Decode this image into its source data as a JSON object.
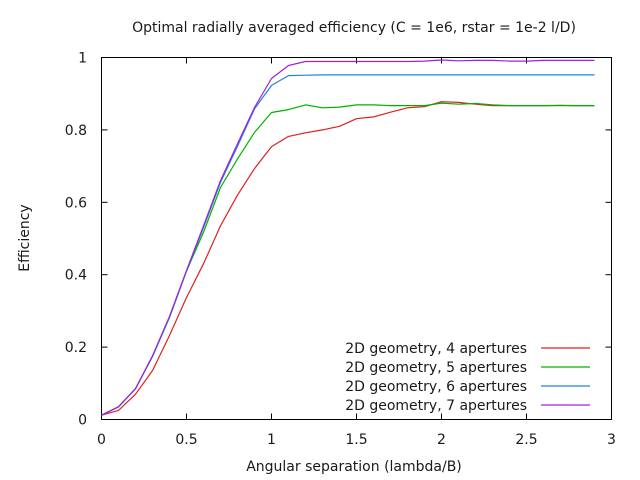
{
  "chart_data": {
    "type": "line",
    "title": "Optimal radially averaged efficiency (C = 1e6, rstar = 1e-2 l/D)",
    "xlabel": "Angular separation (lambda/B)",
    "ylabel": "Efficiency",
    "xlim": [
      0,
      3
    ],
    "ylim": [
      0,
      1
    ],
    "xticks": [
      0,
      0.5,
      1,
      1.5,
      2,
      2.5,
      3
    ],
    "xtick_labels": [
      "0",
      "0.5",
      "1",
      "1.5",
      "2",
      "2.5",
      "3"
    ],
    "yticks": [
      0,
      0.2,
      0.4,
      0.6,
      0.8,
      1
    ],
    "ytick_labels": [
      "0",
      "0.2",
      "0.4",
      "0.6",
      "0.8",
      "1"
    ],
    "grid": false,
    "legend_position": "bottom-right",
    "x": [
      0,
      0.1,
      0.2,
      0.3,
      0.4,
      0.5,
      0.6,
      0.7,
      0.8,
      0.9,
      1.0,
      1.1,
      1.2,
      1.3,
      1.4,
      1.5,
      1.6,
      1.7,
      1.8,
      1.9,
      2.0,
      2.1,
      2.2,
      2.3,
      2.4,
      2.5,
      2.6,
      2.7,
      2.8,
      2.9
    ],
    "series": [
      {
        "name": "2D geometry, 4 apertures",
        "color": "#e02020",
        "values": [
          0.012,
          0.025,
          0.07,
          0.135,
          0.232,
          0.337,
          0.43,
          0.535,
          0.62,
          0.693,
          0.754,
          0.782,
          0.792,
          0.8,
          0.81,
          0.831,
          0.836,
          0.849,
          0.861,
          0.864,
          0.878,
          0.876,
          0.871,
          0.867,
          0.867,
          0.867,
          0.867,
          0.868,
          0.867,
          0.867
        ]
      },
      {
        "name": "2D geometry, 5 apertures",
        "color": "#00b000",
        "values": [
          0.012,
          0.035,
          0.085,
          0.174,
          0.282,
          0.41,
          0.517,
          0.641,
          0.72,
          0.793,
          0.848,
          0.856,
          0.869,
          0.861,
          0.863,
          0.869,
          0.869,
          0.867,
          0.867,
          0.867,
          0.874,
          0.871,
          0.873,
          0.869,
          0.867,
          0.867,
          0.867,
          0.867,
          0.867,
          0.867
        ]
      },
      {
        "name": "2D geometry, 6 apertures",
        "color": "#2080e0",
        "values": [
          0.012,
          0.035,
          0.085,
          0.174,
          0.282,
          0.41,
          0.53,
          0.655,
          0.755,
          0.858,
          0.923,
          0.95,
          0.951,
          0.952,
          0.952,
          0.952,
          0.952,
          0.952,
          0.952,
          0.952,
          0.952,
          0.952,
          0.952,
          0.952,
          0.952,
          0.952,
          0.952,
          0.952,
          0.952,
          0.952
        ]
      },
      {
        "name": "2D geometry, 7 apertures",
        "color": "#a020e0",
        "values": [
          0.012,
          0.035,
          0.085,
          0.176,
          0.285,
          0.412,
          0.535,
          0.66,
          0.762,
          0.862,
          0.942,
          0.978,
          0.989,
          0.989,
          0.989,
          0.989,
          0.989,
          0.989,
          0.989,
          0.99,
          0.993,
          0.991,
          0.992,
          0.992,
          0.99,
          0.99,
          0.992,
          0.992,
          0.992,
          0.992
        ]
      }
    ]
  }
}
